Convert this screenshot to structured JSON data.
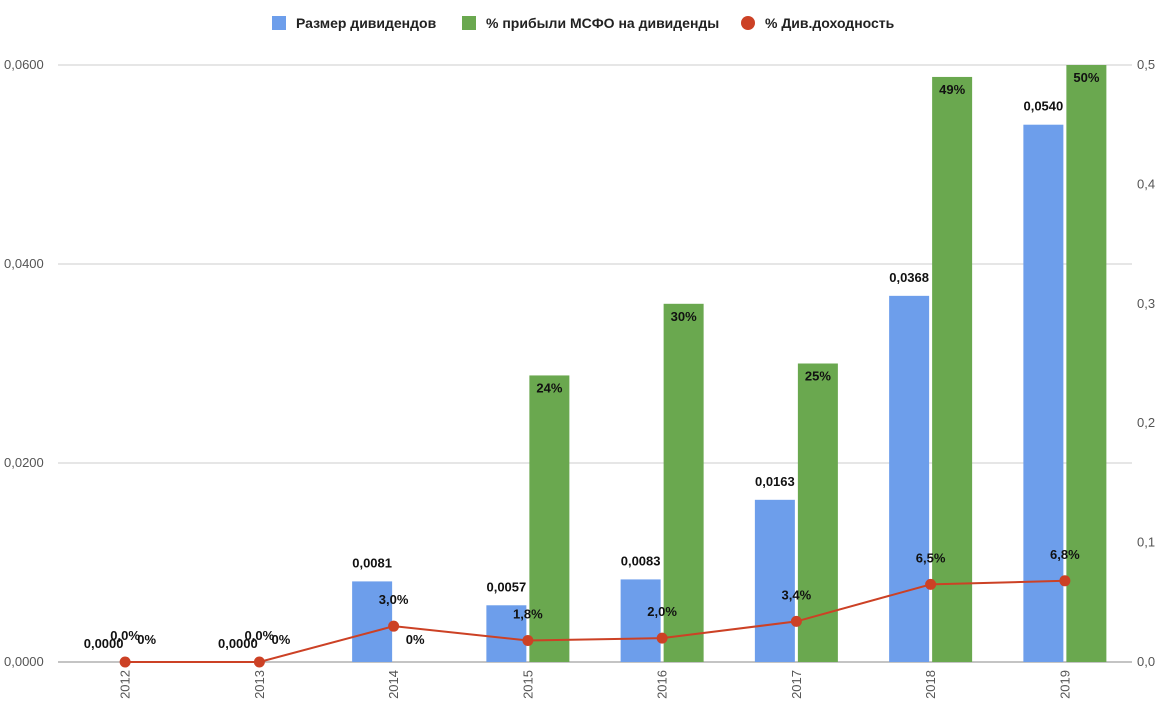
{
  "chart_data": {
    "type": "bar",
    "categories": [
      "2012",
      "2013",
      "2014",
      "2015",
      "2016",
      "2017",
      "2018",
      "2019"
    ],
    "series": [
      {
        "name": "Размер дивидендов",
        "kind": "bar",
        "axis": "left",
        "color": "#6d9eeb",
        "values": [
          0.0,
          0.0,
          0.0081,
          0.0057,
          0.0083,
          0.0163,
          0.0368,
          0.054
        ],
        "labels": [
          "0,0000",
          "0,0000",
          "0,0081",
          "0,0057",
          "0,0083",
          "0,0163",
          "0,0368",
          "0,0540"
        ]
      },
      {
        "name": "% прибыли МСФО на дивиденды",
        "kind": "bar",
        "axis": "right",
        "color": "#6aa84f",
        "values": [
          0.0,
          0.0,
          0.0,
          0.24,
          0.3,
          0.25,
          0.49,
          0.5
        ],
        "labels": [
          "0%",
          "0%",
          "0%",
          "24%",
          "30%",
          "25%",
          "49%",
          "50%"
        ]
      },
      {
        "name": "% Див.доходность",
        "kind": "line",
        "axis": "right",
        "color": "#cc4125",
        "values": [
          0.0,
          0.0,
          0.03,
          0.018,
          0.02,
          0.034,
          0.065,
          0.068
        ],
        "labels": [
          "0,0%",
          "0,0%",
          "3,0%",
          "1,8%",
          "2,0%",
          "3,4%",
          "6,5%",
          "6,8%"
        ]
      }
    ],
    "y_left": {
      "ylim": [
        0,
        0.06
      ],
      "ticks": [
        0,
        0.02,
        0.04,
        0.06
      ],
      "tick_labels": [
        "0,0000",
        "0,0200",
        "0,0400",
        "0,0600"
      ]
    },
    "y_right": {
      "ylim": [
        0,
        0.5
      ],
      "ticks": [
        0,
        0.1,
        0.2,
        0.3,
        0.4,
        0.5
      ],
      "tick_labels": [
        "0,0",
        "0,1",
        "0,2",
        "0,3",
        "0,4",
        "0,5"
      ]
    },
    "title": "",
    "xlabel": "",
    "ylabel": "",
    "grid": true,
    "legend_position": "top-center",
    "x_tick_rotation": "vertical"
  }
}
